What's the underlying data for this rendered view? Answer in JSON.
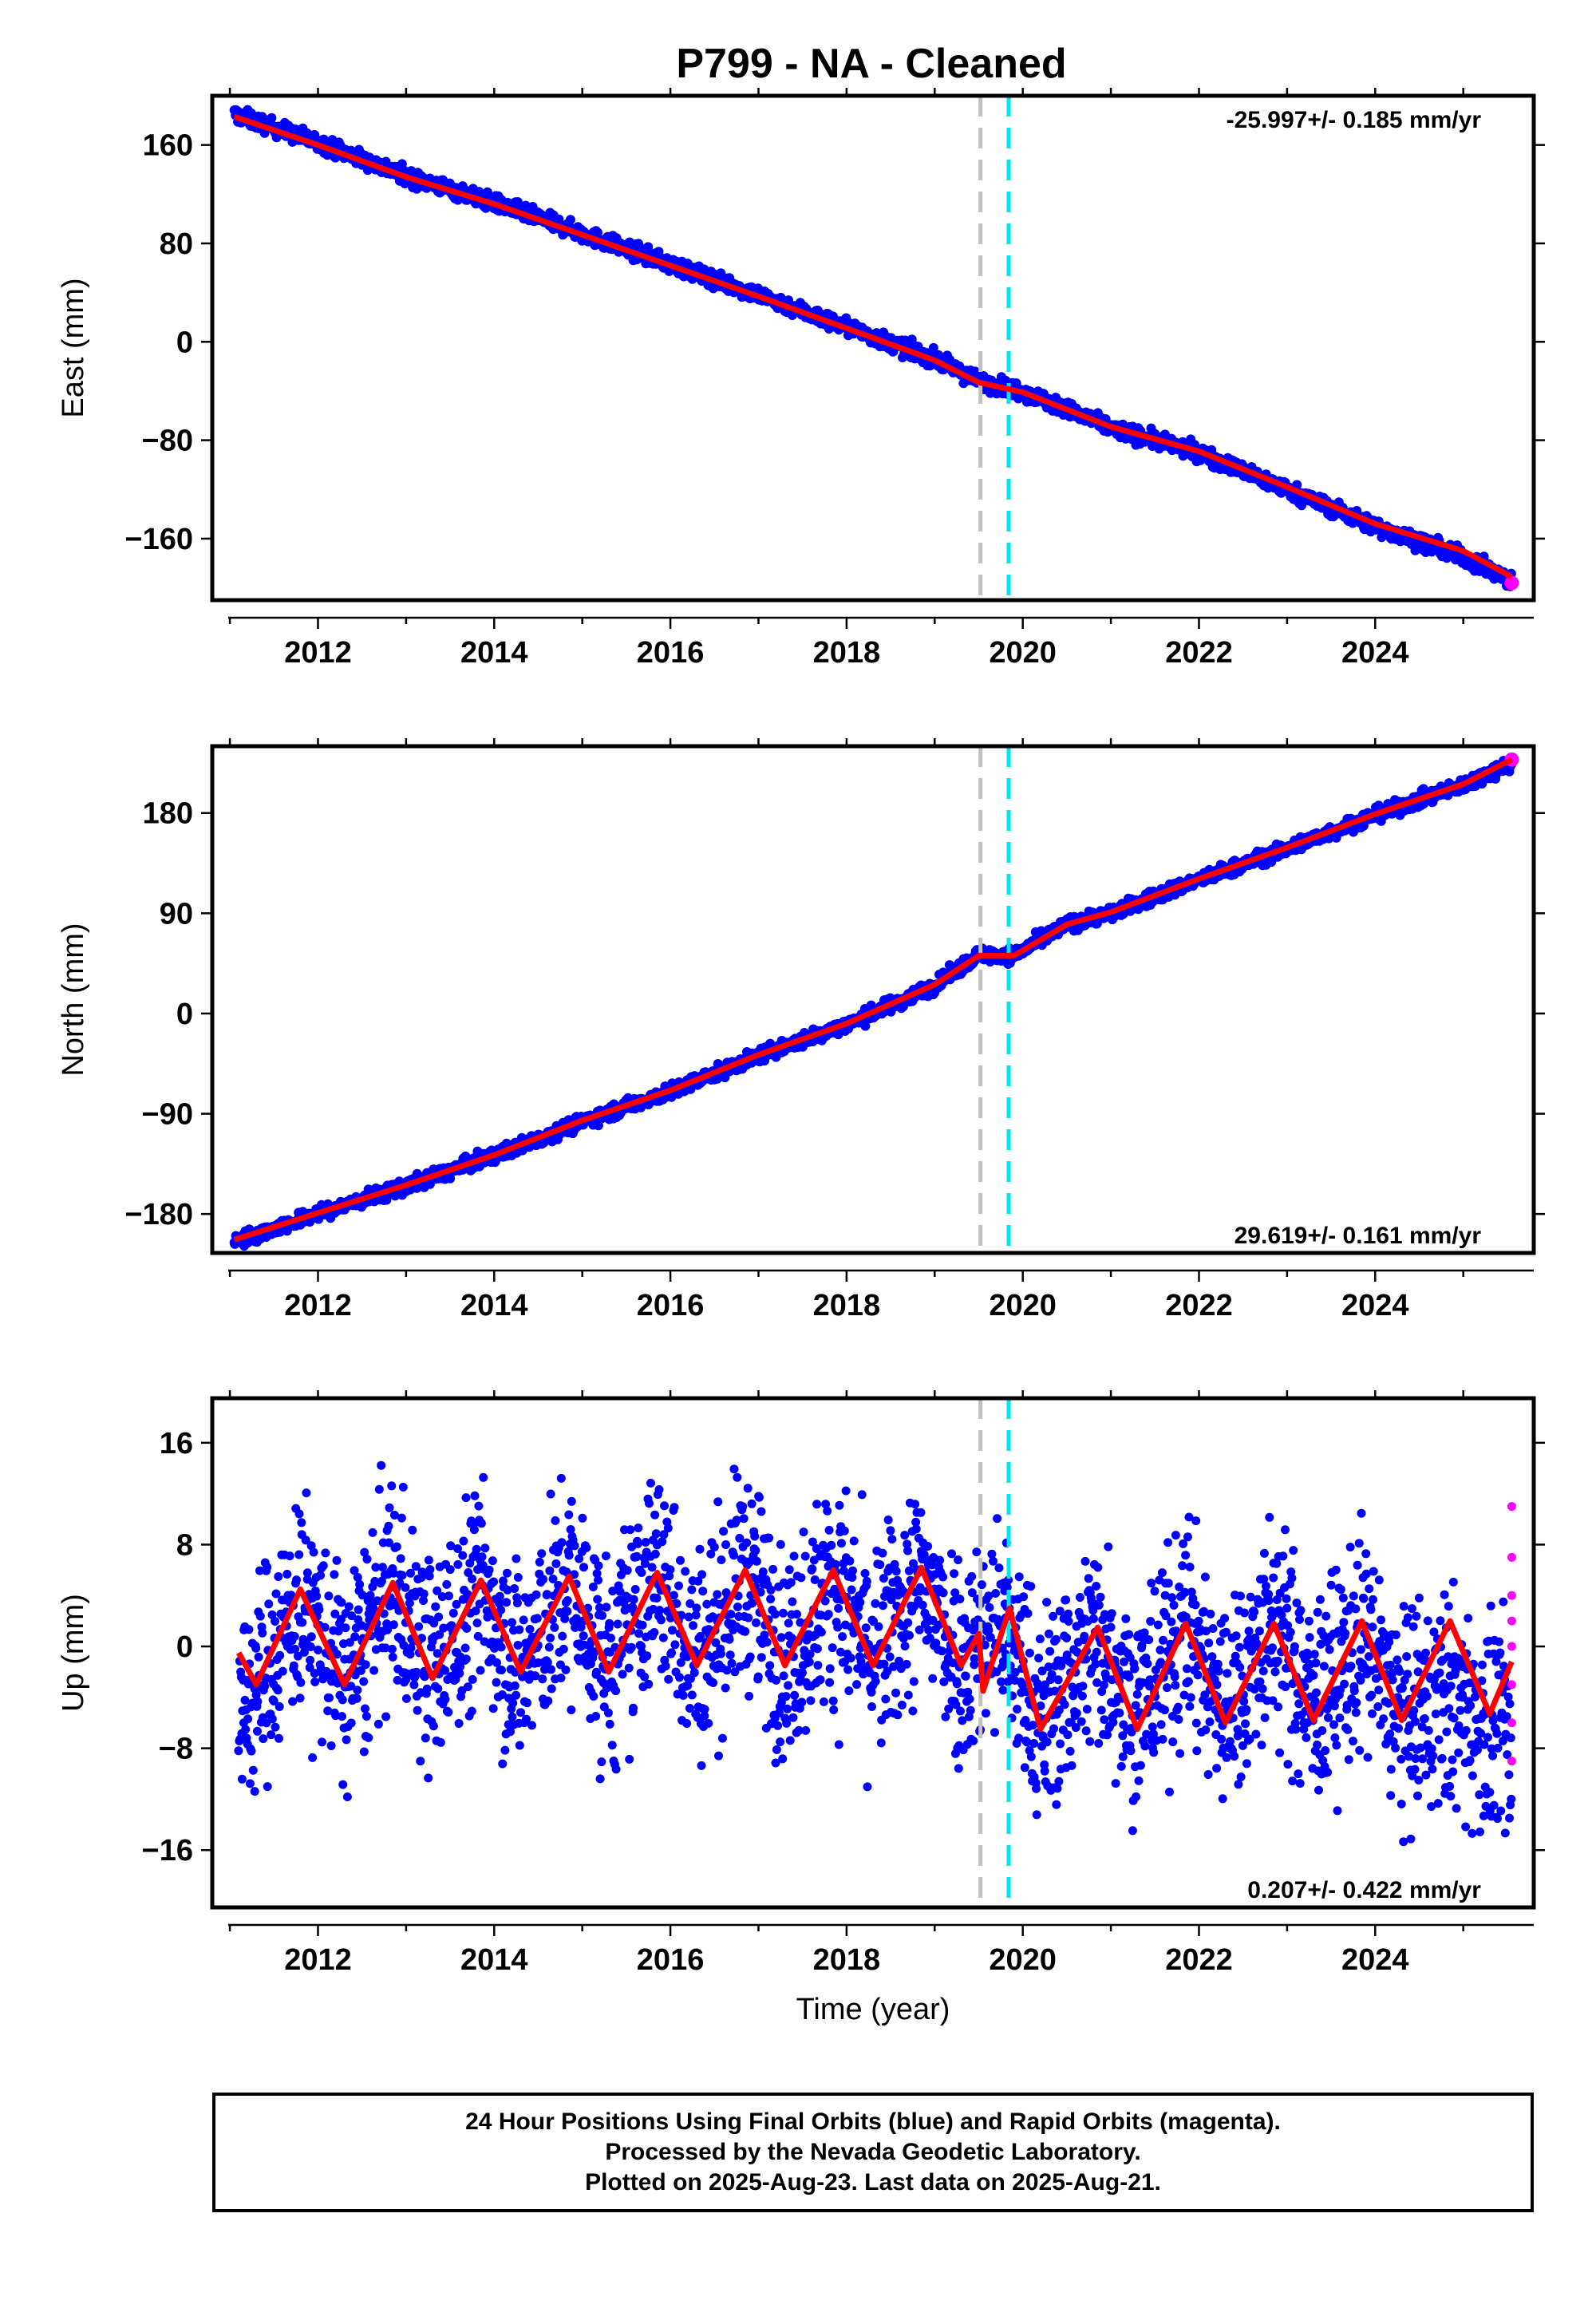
{
  "chart_data": [
    {
      "type": "scatter",
      "title": "P799  - NA - Cleaned",
      "ylabel": "East (mm)",
      "xlabel": "",
      "xlim": [
        2010.8,
        2025.8
      ],
      "ylim": [
        -210,
        200
      ],
      "xticks": [
        2012,
        2014,
        2016,
        2018,
        2020,
        2022,
        2024
      ],
      "yticks": [
        160,
        80,
        0,
        -80,
        -160
      ],
      "rate_label": "-25.997+/- 0.185 mm/yr",
      "rate_position": "top-right",
      "vlines": [
        {
          "x": 2019.52,
          "color": "#c0c0c0"
        },
        {
          "x": 2019.84,
          "color": "#00e5ee"
        }
      ],
      "series": [
        {
          "color": "#0000ff",
          "kind": "final_orbits",
          "trend_points": [
            [
              2011.05,
              185
            ],
            [
              2012.0,
              162
            ],
            [
              2013.0,
              135
            ],
            [
              2014.0,
              113
            ],
            [
              2015.0,
              88
            ],
            [
              2016.0,
              63
            ],
            [
              2017.0,
              38
            ],
            [
              2018.0,
              12
            ],
            [
              2019.0,
              -14
            ],
            [
              2019.5,
              -32
            ],
            [
              2020.0,
              -40
            ],
            [
              2021.0,
              -70
            ],
            [
              2022.0,
              -90
            ],
            [
              2023.0,
              -120
            ],
            [
              2024.0,
              -150
            ],
            [
              2025.0,
              -175
            ],
            [
              2025.55,
              -195
            ]
          ]
        },
        {
          "color": "#ff00ff",
          "kind": "rapid_orbits",
          "trend_points": [
            [
              2025.55,
              -196
            ]
          ]
        },
        {
          "color": "#ff0000",
          "kind": "model_fit",
          "trend_points": [
            [
              2011.05,
              183
            ],
            [
              2012.0,
              160
            ],
            [
              2013.0,
              134
            ],
            [
              2014.0,
              112
            ],
            [
              2015.0,
              87
            ],
            [
              2016.0,
              62
            ],
            [
              2017.0,
              37
            ],
            [
              2018.0,
              11
            ],
            [
              2019.0,
              -15
            ],
            [
              2019.5,
              -33
            ],
            [
              2020.0,
              -41
            ],
            [
              2021.0,
              -69
            ],
            [
              2022.0,
              -89
            ],
            [
              2023.0,
              -118
            ],
            [
              2024.0,
              -148
            ],
            [
              2025.0,
              -170
            ],
            [
              2025.55,
              -191
            ]
          ]
        }
      ]
    },
    {
      "type": "scatter",
      "title": "",
      "ylabel": "North (mm)",
      "xlabel": "",
      "xlim": [
        2010.8,
        2025.8
      ],
      "ylim": [
        -215,
        240
      ],
      "xticks": [
        2012,
        2014,
        2016,
        2018,
        2020,
        2022,
        2024
      ],
      "yticks": [
        180,
        90,
        0,
        -90,
        -180
      ],
      "rate_label": "29.619+/- 0.161 mm/yr",
      "rate_position": "bottom-right",
      "vlines": [
        {
          "x": 2019.52,
          "color": "#c0c0c0"
        },
        {
          "x": 2019.84,
          "color": "#00e5ee"
        }
      ],
      "series": [
        {
          "color": "#0000ff",
          "kind": "final_orbits",
          "trend_points": [
            [
              2011.05,
              -205
            ],
            [
              2012.0,
              -180
            ],
            [
              2013.0,
              -155
            ],
            [
              2014.0,
              -128
            ],
            [
              2015.0,
              -97
            ],
            [
              2016.0,
              -70
            ],
            [
              2017.0,
              -38
            ],
            [
              2018.0,
              -10
            ],
            [
              2019.0,
              25
            ],
            [
              2019.5,
              53
            ],
            [
              2019.9,
              52
            ],
            [
              2020.5,
              80
            ],
            [
              2021.0,
              90
            ],
            [
              2022.0,
              120
            ],
            [
              2023.0,
              148
            ],
            [
              2024.0,
              178
            ],
            [
              2025.0,
              205
            ],
            [
              2025.55,
              225
            ]
          ]
        },
        {
          "color": "#ff00ff",
          "kind": "rapid_orbits",
          "trend_points": [
            [
              2025.55,
              228
            ]
          ]
        },
        {
          "color": "#ff0000",
          "kind": "model_fit",
          "trend_points": [
            [
              2011.05,
              -203
            ],
            [
              2012.0,
              -179
            ],
            [
              2013.0,
              -154
            ],
            [
              2014.0,
              -127
            ],
            [
              2015.0,
              -96
            ],
            [
              2016.0,
              -69
            ],
            [
              2017.0,
              -37
            ],
            [
              2018.0,
              -9
            ],
            [
              2019.0,
              26
            ],
            [
              2019.5,
              52
            ],
            [
              2019.9,
              52
            ],
            [
              2020.5,
              80
            ],
            [
              2021.0,
              91
            ],
            [
              2022.0,
              121
            ],
            [
              2023.0,
              149
            ],
            [
              2024.0,
              179
            ],
            [
              2025.0,
              206
            ],
            [
              2025.55,
              228
            ]
          ]
        }
      ]
    },
    {
      "type": "scatter",
      "title": "",
      "ylabel": "Up (mm)",
      "xlabel": "Time (year)",
      "xlim": [
        2010.8,
        2025.8
      ],
      "ylim": [
        -20.5,
        19.5
      ],
      "xticks": [
        2012,
        2014,
        2016,
        2018,
        2020,
        2022,
        2024
      ],
      "yticks": [
        16,
        8,
        0,
        -8,
        -16
      ],
      "rate_label": "0.207+/- 0.422 mm/yr",
      "rate_position": "bottom-right",
      "vlines": [
        {
          "x": 2019.52,
          "color": "#c0c0c0"
        },
        {
          "x": 2019.84,
          "color": "#00e5ee"
        }
      ],
      "series": [
        {
          "color": "#0000ff",
          "kind": "final_orbits",
          "trend_points": [
            [
              2011.1,
              -6
            ],
            [
              2011.8,
              4
            ],
            [
              2012.3,
              -3
            ],
            [
              2012.85,
              5
            ],
            [
              2013.3,
              -2
            ],
            [
              2013.85,
              5
            ],
            [
              2014.3,
              -2
            ],
            [
              2014.85,
              5
            ],
            [
              2015.3,
              -2
            ],
            [
              2015.85,
              6
            ],
            [
              2016.3,
              -1
            ],
            [
              2016.85,
              6
            ],
            [
              2017.3,
              -1
            ],
            [
              2017.85,
              5
            ],
            [
              2018.3,
              -1
            ],
            [
              2018.85,
              5
            ],
            [
              2019.3,
              -1
            ],
            [
              2019.6,
              1
            ],
            [
              2019.75,
              2
            ],
            [
              2020.2,
              -6
            ],
            [
              2020.85,
              1
            ],
            [
              2021.3,
              -5
            ],
            [
              2021.85,
              2
            ],
            [
              2022.3,
              -5
            ],
            [
              2022.85,
              2
            ],
            [
              2023.3,
              -5
            ],
            [
              2023.85,
              1
            ],
            [
              2024.3,
              -6
            ],
            [
              2024.85,
              -4
            ],
            [
              2025.55,
              -8
            ]
          ]
        },
        {
          "color": "#ff00ff",
          "kind": "rapid_orbits",
          "trend_points": [
            [
              2025.55,
              -9
            ],
            [
              2025.55,
              -6
            ],
            [
              2025.55,
              -3
            ],
            [
              2025.55,
              0
            ],
            [
              2025.55,
              2
            ],
            [
              2025.55,
              4
            ],
            [
              2025.55,
              7
            ],
            [
              2025.55,
              11
            ]
          ]
        },
        {
          "color": "#ff0000",
          "kind": "model_fit",
          "trend_points": [
            [
              2011.1,
              -0.5
            ],
            [
              2011.3,
              -3
            ],
            [
              2011.8,
              4.5
            ],
            [
              2012.3,
              -3
            ],
            [
              2012.85,
              5
            ],
            [
              2013.3,
              -2.5
            ],
            [
              2013.85,
              5.2
            ],
            [
              2014.3,
              -2
            ],
            [
              2014.85,
              5.5
            ],
            [
              2015.3,
              -2
            ],
            [
              2015.85,
              5.8
            ],
            [
              2016.3,
              -1.5
            ],
            [
              2016.85,
              6
            ],
            [
              2017.3,
              -1.5
            ],
            [
              2017.85,
              6
            ],
            [
              2018.3,
              -1.5
            ],
            [
              2018.85,
              6.2
            ],
            [
              2019.3,
              -1.5
            ],
            [
              2019.5,
              1
            ],
            [
              2019.55,
              -3.5
            ],
            [
              2019.85,
              3
            ],
            [
              2020.2,
              -6.5
            ],
            [
              2020.85,
              1.5
            ],
            [
              2021.3,
              -6.5
            ],
            [
              2021.85,
              1.8
            ],
            [
              2022.3,
              -6
            ],
            [
              2022.85,
              1.8
            ],
            [
              2023.3,
              -5.8
            ],
            [
              2023.85,
              2
            ],
            [
              2024.3,
              -5.8
            ],
            [
              2024.85,
              2
            ],
            [
              2025.3,
              -5.3
            ],
            [
              2025.55,
              -1.2
            ]
          ]
        }
      ]
    }
  ],
  "footer": {
    "line1": "24 Hour Positions Using Final Orbits (blue) and Rapid Orbits (magenta).",
    "line2": "Processed by the Nevada Geodetic Laboratory.",
    "line3": "Plotted on 2025-Aug-23. Last data on 2025-Aug-21."
  }
}
